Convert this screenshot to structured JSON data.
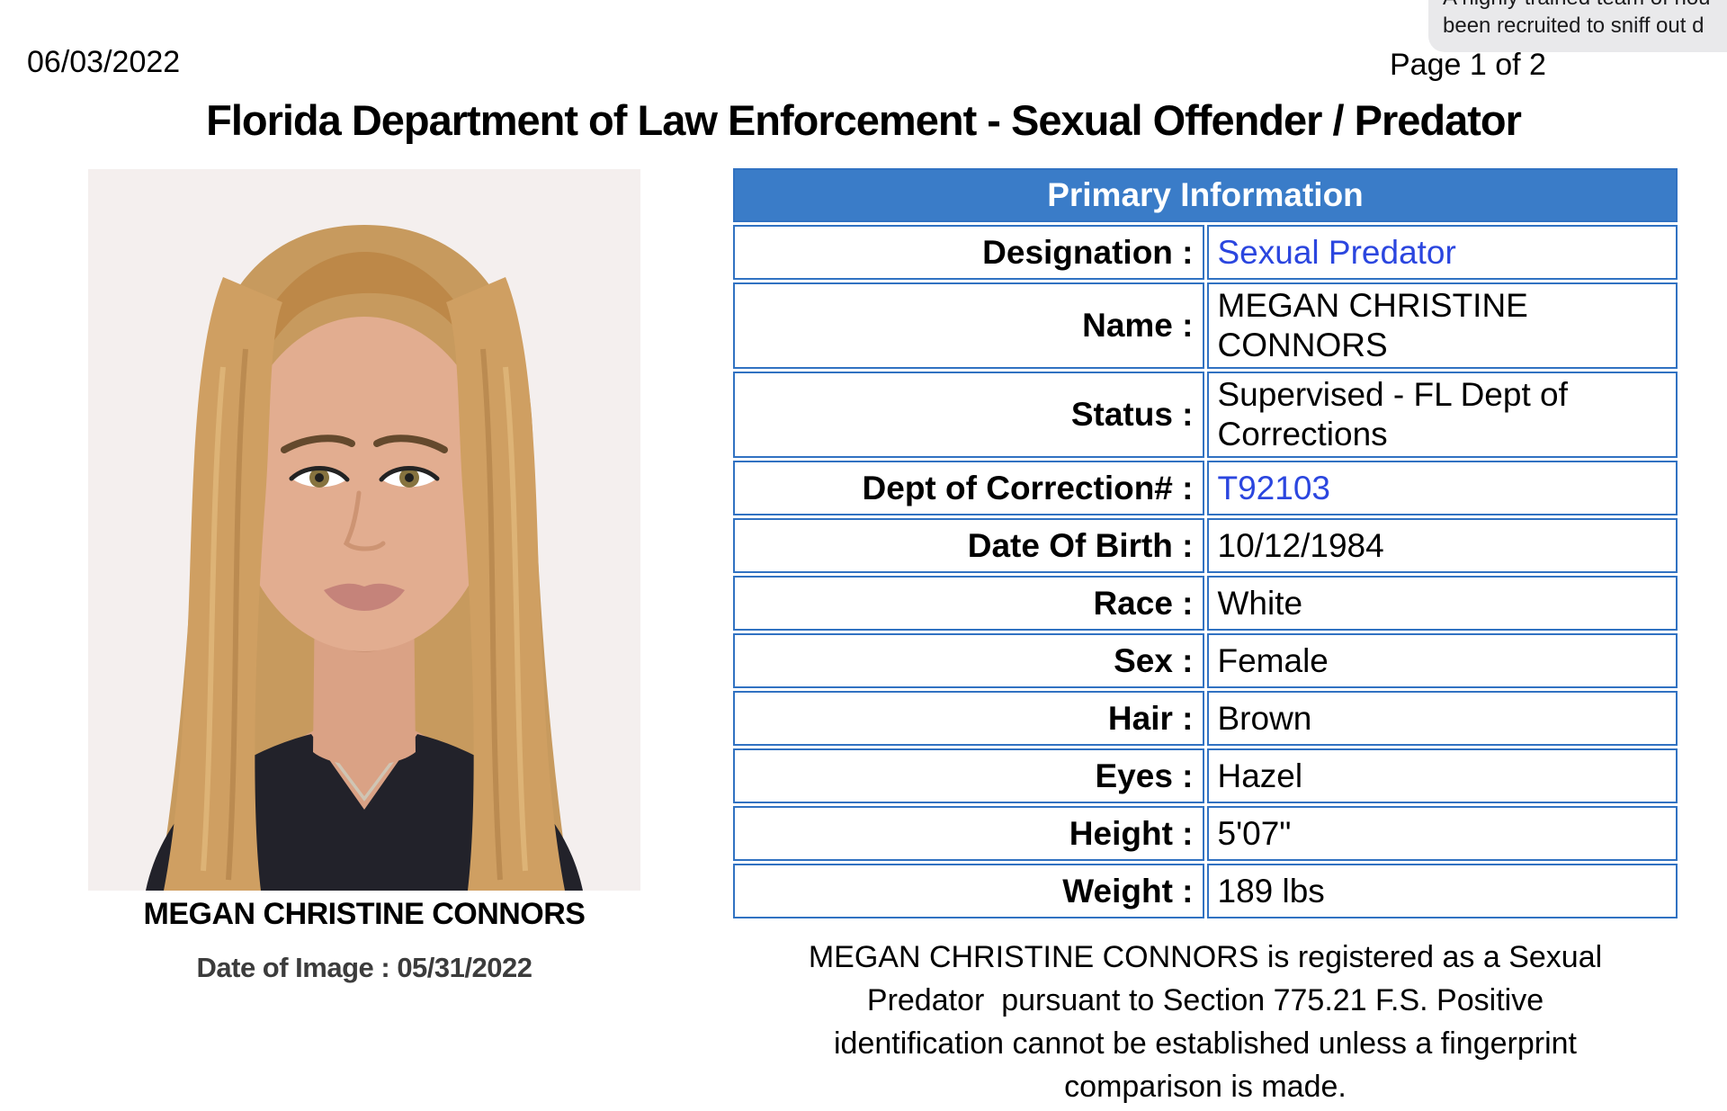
{
  "page": {
    "date": "06/03/2022",
    "page_number": "Page 1 of 2",
    "title": "Florida Department of Law Enforcement - Sexual Offender / Predator"
  },
  "notification": {
    "line1": "A highly trained team of hou",
    "line2": "been recruited to sniff out d"
  },
  "photo": {
    "caption_name": "MEGAN CHRISTINE CONNORS",
    "caption_date": "Date of Image : 05/31/2022"
  },
  "table": {
    "header": "Primary Information",
    "rows": [
      {
        "label": "Designation :",
        "value": "Sexual Predator",
        "link": true
      },
      {
        "label": "Name :",
        "value": "MEGAN CHRISTINE CONNORS",
        "link": false
      },
      {
        "label": "Status :",
        "value": "Supervised - FL Dept of Corrections",
        "link": false
      },
      {
        "label": "Dept of Correction# :",
        "value": "T92103",
        "link": true
      },
      {
        "label": "Date Of Birth :",
        "value": "10/12/1984",
        "link": false
      },
      {
        "label": "Race :",
        "value": "White",
        "link": false
      },
      {
        "label": "Sex :",
        "value": "Female",
        "link": false
      },
      {
        "label": "Hair :",
        "value": "Brown",
        "link": false
      },
      {
        "label": "Eyes :",
        "value": "Hazel",
        "link": false
      },
      {
        "label": "Height :",
        "value": "5'07\"",
        "link": false
      },
      {
        "label": "Weight :",
        "value": "189 lbs",
        "link": false
      }
    ]
  },
  "footnote": {
    "lines": [
      "MEGAN CHRISTINE CONNORS is registered as a Sexual",
      "Predator  pursuant to Section 775.21 F.S. Positive",
      "identification cannot be established unless a fingerprint",
      "comparison is made."
    ]
  },
  "colors": {
    "table_header_blue": "#3A7CC8",
    "table_border_blue": "#3172C2",
    "link_blue": "#2B46DF",
    "notification_bg": "#E9E9EB"
  }
}
